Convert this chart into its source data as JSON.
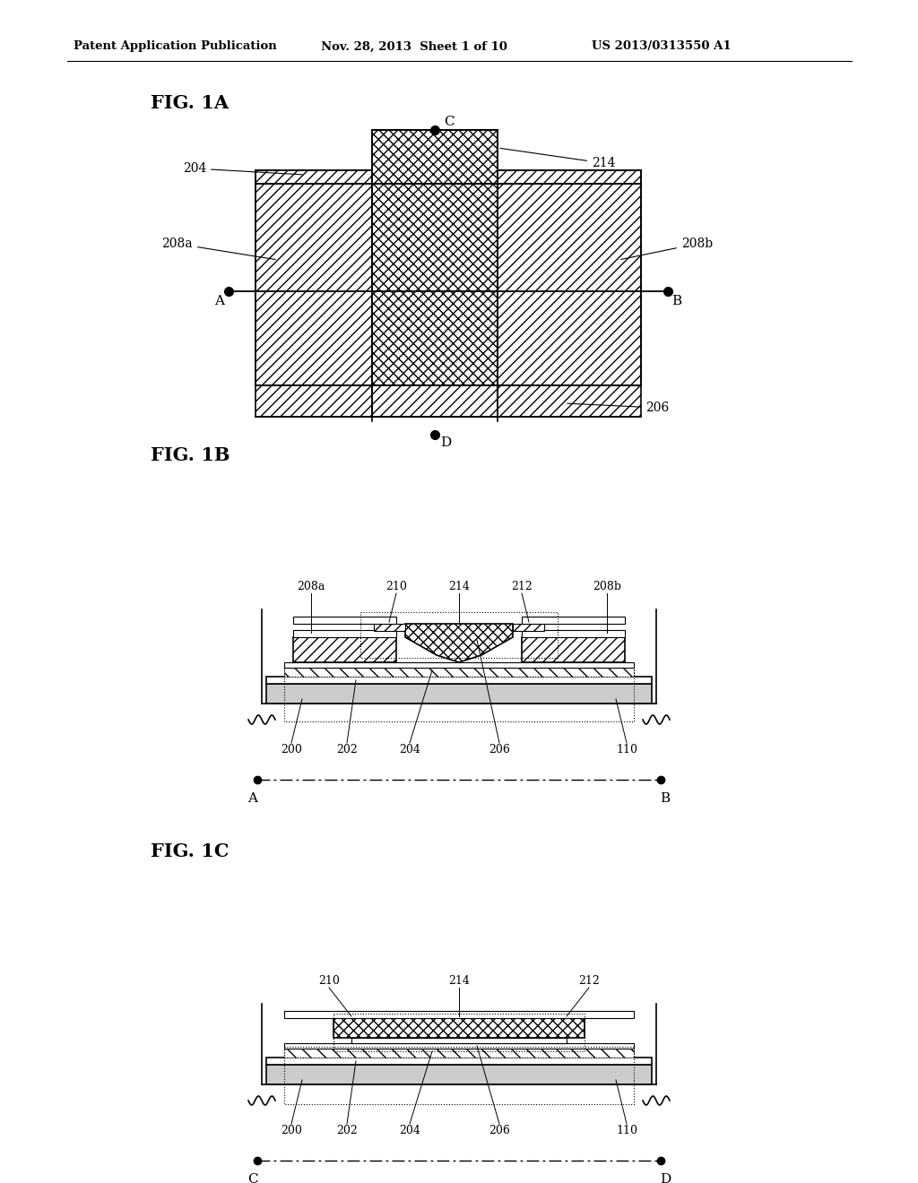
{
  "bg_color": "#ffffff",
  "header_text": "Patent Application Publication",
  "header_date": "Nov. 28, 2013  Sheet 1 of 10",
  "header_patent": "US 2013/0313550 A1",
  "fig1a_label": "FIG. 1A",
  "fig1b_label": "FIG. 1B",
  "fig1c_label": "FIG. 1C",
  "line_color": "#000000"
}
